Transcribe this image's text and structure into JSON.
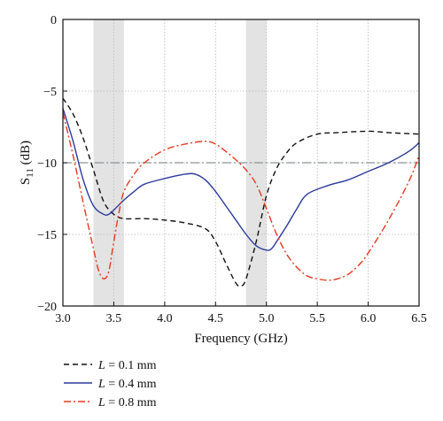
{
  "chart_data": {
    "type": "line",
    "title": "",
    "xlabel": "Frequency (GHz)",
    "ylabel": {
      "base": "S",
      "sub": "11",
      "unit": " (dB)"
    },
    "xlim": [
      3.0,
      6.5
    ],
    "ylim": [
      -20,
      0
    ],
    "xticks": [
      3.0,
      3.5,
      4.0,
      4.5,
      5.0,
      5.5,
      6.0,
      6.5
    ],
    "xtick_labels": [
      "3.0",
      "3.5",
      "4.0",
      "4.5",
      "5.0",
      "5.5",
      "6.0",
      "6.5"
    ],
    "yticks": [
      0,
      -5,
      -10,
      -15,
      -20
    ],
    "ytick_labels": [
      "0",
      "−5",
      "−10",
      "−15",
      "−20"
    ],
    "grid": true,
    "reference_line": {
      "y": -10,
      "color": "#8a9296"
    },
    "shaded_bands": [
      [
        3.3,
        3.6
      ],
      [
        4.8,
        5.0
      ]
    ],
    "legend_placement": "bottom-left, below plot",
    "series": [
      {
        "name": "L = 0.1 mm",
        "legend": {
          "italic": "L",
          "rest": " = 0.1 mm"
        },
        "color": "#111111",
        "style": "dashed",
        "x": [
          3.0,
          3.1,
          3.2,
          3.3,
          3.4,
          3.5,
          3.6,
          3.8,
          4.0,
          4.2,
          4.4,
          4.5,
          4.6,
          4.7,
          4.75,
          4.8,
          4.9,
          5.0,
          5.1,
          5.2,
          5.3,
          5.5,
          5.7,
          6.0,
          6.2,
          6.5
        ],
        "y": [
          -5.5,
          -6.6,
          -8.3,
          -10.5,
          -12.7,
          -13.6,
          -13.9,
          -13.9,
          -14.0,
          -14.2,
          -14.6,
          -15.5,
          -17.0,
          -18.4,
          -18.6,
          -18.1,
          -15.5,
          -12.3,
          -10.4,
          -9.3,
          -8.6,
          -8.0,
          -7.9,
          -7.8,
          -7.9,
          -8.0
        ]
      },
      {
        "name": "L = 0.4 mm",
        "legend": {
          "italic": "L",
          "rest": " = 0.4 mm"
        },
        "color": "#2b3a9c",
        "style": "solid",
        "x": [
          3.0,
          3.1,
          3.2,
          3.3,
          3.4,
          3.45,
          3.5,
          3.6,
          3.7,
          3.8,
          4.0,
          4.2,
          4.3,
          4.4,
          4.5,
          4.6,
          4.7,
          4.8,
          4.9,
          5.0,
          5.05,
          5.1,
          5.2,
          5.3,
          5.4,
          5.6,
          5.8,
          6.0,
          6.2,
          6.4,
          6.5
        ],
        "y": [
          -6.2,
          -8.5,
          -11.2,
          -13.0,
          -13.6,
          -13.6,
          -13.3,
          -12.6,
          -12.0,
          -11.5,
          -11.1,
          -10.8,
          -10.8,
          -11.2,
          -12.0,
          -13.0,
          -14.0,
          -15.0,
          -15.8,
          -16.1,
          -16.0,
          -15.5,
          -14.4,
          -13.2,
          -12.2,
          -11.6,
          -11.2,
          -10.6,
          -10.0,
          -9.2,
          -8.6
        ]
      },
      {
        "name": "L = 0.8 mm",
        "legend": {
          "italic": "L",
          "rest": " = 0.8 mm"
        },
        "color": "#e8381f",
        "style": "dashdot",
        "x": [
          3.0,
          3.1,
          3.2,
          3.3,
          3.35,
          3.4,
          3.45,
          3.5,
          3.55,
          3.6,
          3.7,
          3.8,
          4.0,
          4.2,
          4.4,
          4.5,
          4.6,
          4.7,
          4.8,
          4.9,
          5.0,
          5.1,
          5.2,
          5.3,
          5.4,
          5.5,
          5.6,
          5.7,
          5.8,
          5.9,
          6.0,
          6.2,
          6.4,
          6.5
        ],
        "y": [
          -6.5,
          -9.5,
          -12.8,
          -16.0,
          -17.5,
          -18.1,
          -17.6,
          -15.5,
          -13.5,
          -12.0,
          -10.8,
          -10.0,
          -9.1,
          -8.7,
          -8.5,
          -8.7,
          -9.2,
          -9.8,
          -10.5,
          -11.5,
          -13.2,
          -15.0,
          -16.4,
          -17.3,
          -17.9,
          -18.1,
          -18.2,
          -18.1,
          -17.8,
          -17.2,
          -16.3,
          -14.0,
          -11.3,
          -9.5
        ]
      }
    ]
  }
}
